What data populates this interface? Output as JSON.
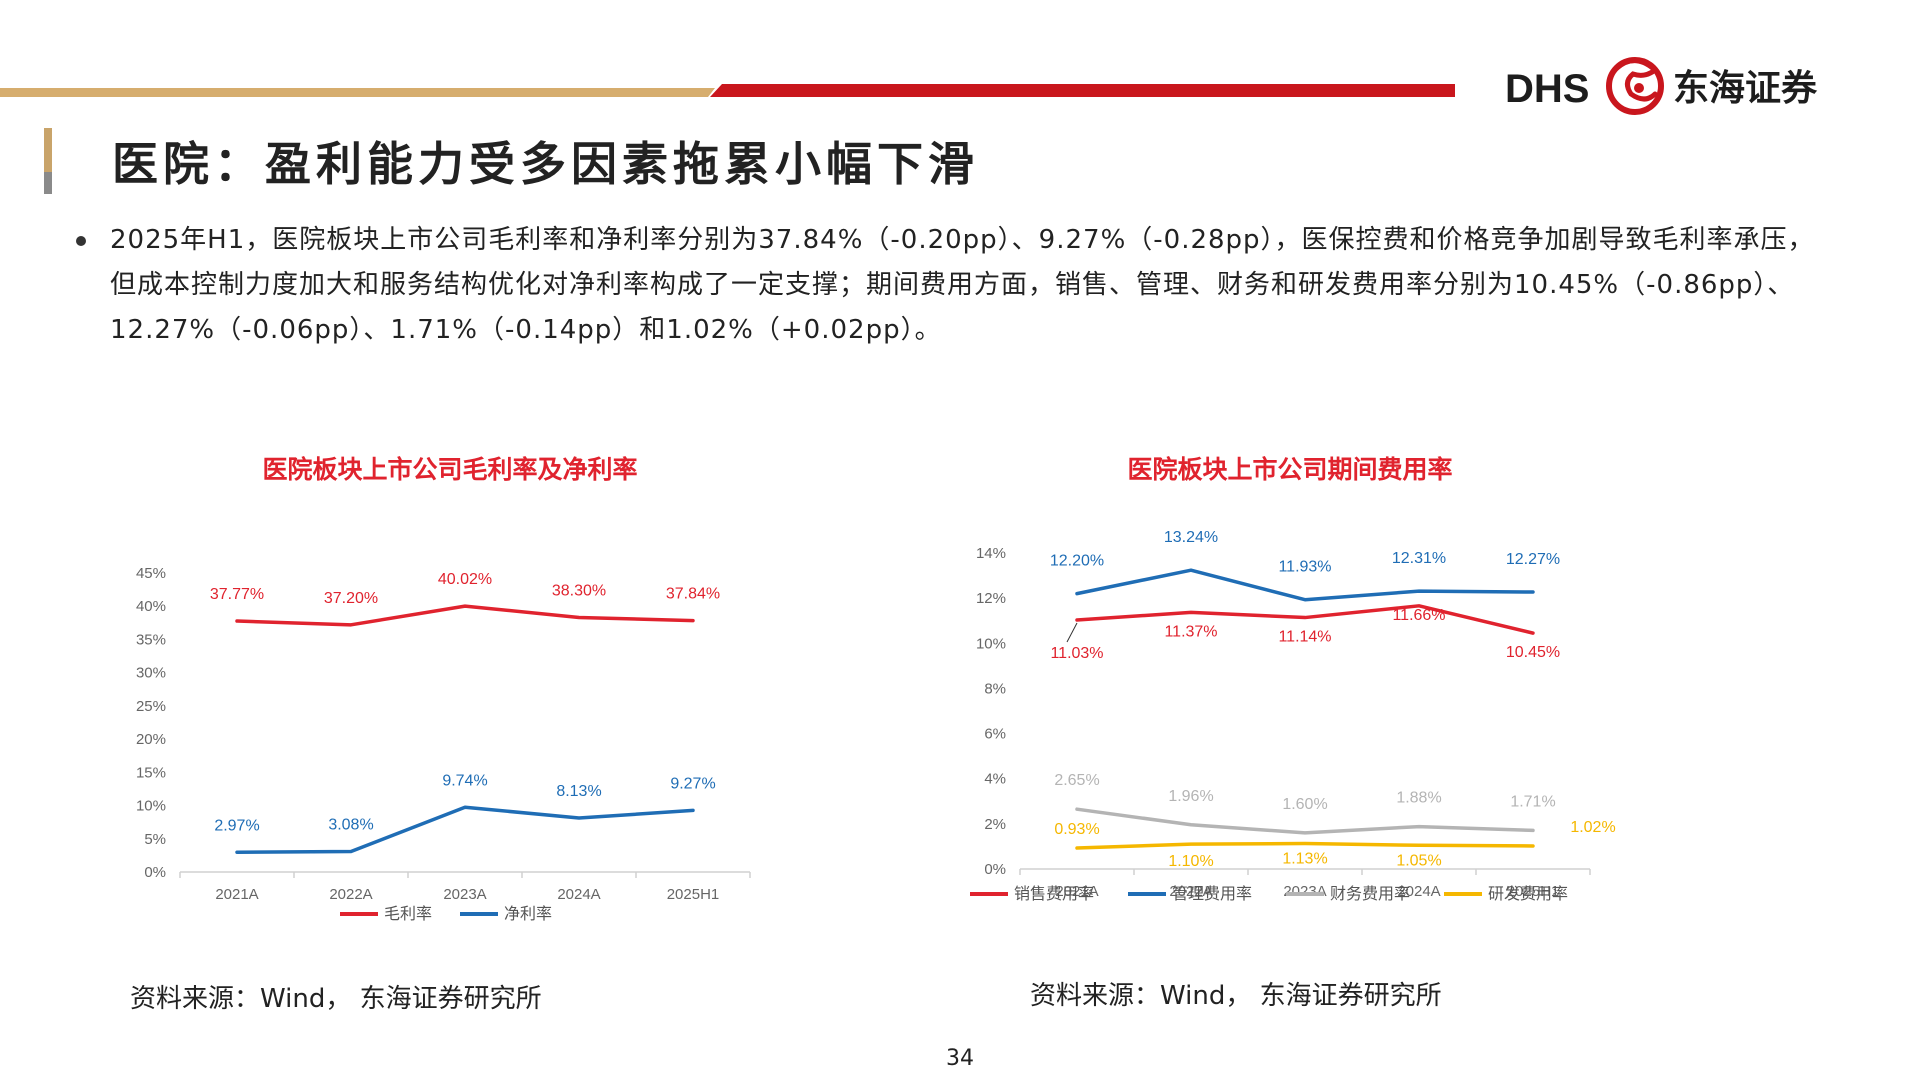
{
  "header": {
    "title": "医院：盈利能力受多因素拖累小幅下滑",
    "logo": {
      "letters": "DHS",
      "company": "东海证券"
    },
    "colors": {
      "gold": "#d6ad6e",
      "red": "#c9161d"
    }
  },
  "bullet": "2025年H1，医院板块上市公司毛利率和净利率分别为37.84%（-0.20pp）、9.27%（-0.28pp），医保控费和价格竞争加剧导致毛利率承压，但成本控制力度加大和服务结构优化对净利率构成了一定支撑；期间费用方面，销售、管理、财务和研发费用率分别为10.45%（-0.86pp）、 12.27%（-0.06pp）、1.71%（-0.14pp）和1.02%（+0.02pp）。",
  "chart_data": [
    {
      "type": "line",
      "title": "医院板块上市公司毛利率及净利率",
      "categories": [
        "2021A",
        "2022A",
        "2023A",
        "2024A",
        "2025H1"
      ],
      "y_ticks": [
        "0%",
        "5%",
        "10%",
        "15%",
        "20%",
        "25%",
        "30%",
        "35%",
        "40%",
        "45%"
      ],
      "ylim": [
        0,
        45
      ],
      "grid": false,
      "legend_position": "bottom",
      "series": [
        {
          "name": "毛利率",
          "color": "#e0232e",
          "values": [
            37.77,
            37.2,
            40.02,
            38.3,
            37.84
          ],
          "labels": [
            "37.77%",
            "37.20%",
            "40.02%",
            "38.30%",
            "37.84%"
          ]
        },
        {
          "name": "净利率",
          "color": "#1f6db5",
          "values": [
            2.97,
            3.08,
            9.74,
            8.13,
            9.27
          ],
          "labels": [
            "2.97%",
            "3.08%",
            "9.74%",
            "8.13%",
            "9.27%"
          ]
        }
      ]
    },
    {
      "type": "line",
      "title": "医院板块上市公司期间费用率",
      "categories": [
        "2021A",
        "2022A",
        "2023A",
        "2024A",
        "2025H1"
      ],
      "y_ticks": [
        "0%",
        "2%",
        "4%",
        "6%",
        "8%",
        "10%",
        "12%",
        "14%"
      ],
      "ylim": [
        0,
        14
      ],
      "grid": false,
      "legend_position": "bottom",
      "series": [
        {
          "name": "销售费用率",
          "color": "#e0232e",
          "values": [
            11.03,
            11.37,
            11.14,
            11.66,
            10.45
          ],
          "labels": [
            "11.03%",
            "11.37%",
            "11.14%",
            "11.66%",
            "10.45%"
          ]
        },
        {
          "name": "管理费用率",
          "color": "#1f6db5",
          "values": [
            12.2,
            13.24,
            11.93,
            12.31,
            12.27
          ],
          "labels": [
            "12.20%",
            "13.24%",
            "11.93%",
            "12.31%",
            "12.27%"
          ]
        },
        {
          "name": "财务费用率",
          "color": "#b4b4b4",
          "values": [
            2.65,
            1.96,
            1.6,
            1.88,
            1.71
          ],
          "labels": [
            "2.65%",
            "1.96%",
            "1.60%",
            "1.88%",
            "1.71%"
          ]
        },
        {
          "name": "研发费用率",
          "color": "#f5b700",
          "values": [
            0.93,
            1.1,
            1.13,
            1.05,
            1.02
          ],
          "labels": [
            "0.93%",
            "1.10%",
            "1.13%",
            "1.05%",
            "1.02%"
          ]
        }
      ]
    }
  ],
  "sources": [
    "资料来源：Wind， 东海证券研究所",
    "资料来源：Wind， 东海证券研究所"
  ],
  "page_number": "34"
}
